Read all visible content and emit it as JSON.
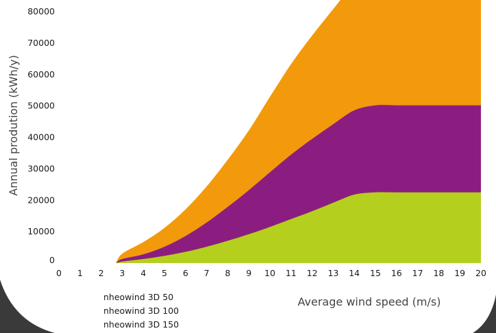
{
  "chart_data": {
    "type": "area",
    "stacked": true,
    "xlabel": "Average wind speed (m/s)",
    "ylabel": "Annual prodution (kWh/y)",
    "xlim": [
      0,
      20
    ],
    "ylim": [
      0,
      80000
    ],
    "x_ticks": [
      "0",
      "1",
      "2",
      "3",
      "4",
      "5",
      "6",
      "7",
      "8",
      "9",
      "10",
      "11",
      "12",
      "13",
      "14",
      "15",
      "16",
      "17",
      "18",
      "19",
      "20"
    ],
    "y_ticks": [
      "0",
      "10000",
      "20000",
      "30000",
      "40000",
      "50000",
      "60000",
      "70000",
      "80000"
    ],
    "grid": false,
    "legend_position": "bottom-left",
    "x": [
      2.7,
      3,
      4,
      5,
      6,
      7,
      8,
      9,
      10,
      11,
      12,
      13,
      14,
      15,
      16,
      17,
      18,
      19,
      20
    ],
    "series": [
      {
        "name": "nheowind 3D 50",
        "color": "#b5cf1f",
        "values": [
          0,
          500,
          1300,
          2300,
          3600,
          5200,
          7100,
          9200,
          11500,
          14000,
          16500,
          19200,
          21800,
          22500,
          22500,
          22500,
          22500,
          22500,
          22500
        ]
      },
      {
        "name": "nheowind 3D 100",
        "color": "#8c1d80",
        "values": [
          0,
          800,
          1500,
          2900,
          5000,
          7700,
          10800,
          14000,
          17400,
          20500,
          23000,
          25000,
          26800,
          27700,
          27700,
          27700,
          27700,
          27700,
          27700
        ]
      },
      {
        "name": "nheowind 3D 150",
        "color": "#f29a0b",
        "values": [
          0,
          1700,
          3900,
          6000,
          8500,
          11500,
          15000,
          19000,
          24000,
          28800,
          32900,
          36600,
          40500,
          45000,
          45000,
          45000,
          45000,
          45000,
          45000
        ]
      }
    ]
  }
}
